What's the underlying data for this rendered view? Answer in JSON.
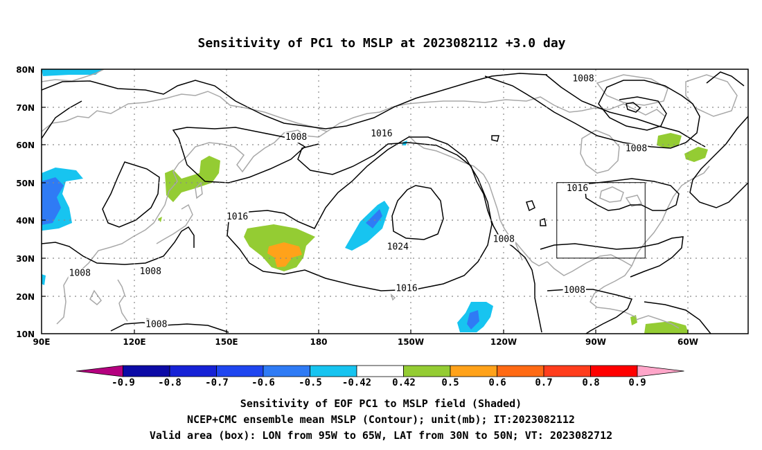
{
  "title": "Sensitivity of PC1 to MSLP at 2023082112 +3.0 day",
  "map": {
    "lon_labels": [
      "90E",
      "120E",
      "150E",
      "180",
      "150W",
      "120W",
      "90W",
      "60W"
    ],
    "lat_labels": [
      "80N",
      "70N",
      "60N",
      "50N",
      "40N",
      "30N",
      "20N",
      "10N"
    ],
    "contour_labels": [
      {
        "text": "1008",
        "lon": -86,
        "lat": 77.5
      },
      {
        "text": "1008",
        "lon": 176.5,
        "lat": 62
      },
      {
        "text": "1016",
        "lon": -154.5,
        "lat": 63
      },
      {
        "text": "1008",
        "lon": -68,
        "lat": 59
      },
      {
        "text": "1016",
        "lon": -88,
        "lat": 48.5
      },
      {
        "text": "1016",
        "lon": 156.5,
        "lat": 41
      },
      {
        "text": "1024",
        "lon": -149,
        "lat": 33
      },
      {
        "text": "1008",
        "lon": -113,
        "lat": 35
      },
      {
        "text": "1008",
        "lon": 103,
        "lat": 26
      },
      {
        "text": "1008",
        "lon": 127,
        "lat": 26.5
      },
      {
        "text": "1016",
        "lon": -146,
        "lat": 22
      },
      {
        "text": "1008",
        "lon": -89,
        "lat": 21.5
      },
      {
        "text": "1008",
        "lon": 129,
        "lat": 12.5
      }
    ],
    "valid_box": {
      "lon_w": -95,
      "lon_e": -65,
      "lat_s": 30,
      "lat_n": 50
    }
  },
  "colorbar": {
    "labels": [
      "-0.9",
      "-0.8",
      "-0.7",
      "-0.6",
      "-0.5",
      "-0.42",
      "0.42",
      "0.5",
      "0.6",
      "0.7",
      "0.8",
      "0.9"
    ],
    "colors": [
      "#b5007f",
      "#0c0aa6",
      "#1622d6",
      "#1f46f0",
      "#2f7bf5",
      "#17c4f0",
      "#ffffff",
      "#94cc33",
      "#ffa21a",
      "#ff6a14",
      "#ff3d1c",
      "#ff0000",
      "#ffa6c9"
    ]
  },
  "caption": [
    "Sensitivity of EOF PC1 to MSLP field (Shaded)",
    "NCEP+CMC ensemble mean MSLP (Contour); unit(mb); IT:2023082112",
    "Valid area (box): LON from 95W to 65W, LAT from 30N to 50N; VT: 2023082712"
  ]
}
